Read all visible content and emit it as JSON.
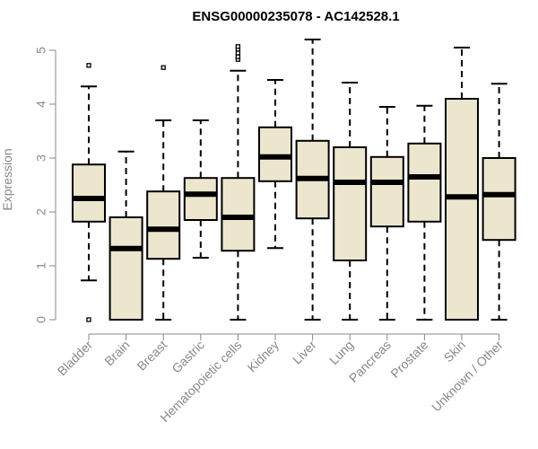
{
  "chart_data": {
    "type": "boxplot",
    "title": "ENSG00000235078 - AC142528.1",
    "xlabel": "",
    "ylabel": "Expression",
    "ylim": [
      0,
      5
    ],
    "yticks": [
      "0",
      "1",
      "2",
      "3",
      "4",
      "5"
    ],
    "categories": [
      "Bladder",
      "Brain",
      "Breast",
      "Gastric",
      "Hematopoietic cells",
      "Kidney",
      "Liver",
      "Lung",
      "Pancreas",
      "Prostate",
      "Skin",
      "Unknown / Other"
    ],
    "boxes": [
      {
        "whisker_low": 0.73,
        "q1": 1.82,
        "median": 2.25,
        "q3": 2.88,
        "whisker_high": 4.33,
        "outliers": [
          0.0,
          4.72
        ]
      },
      {
        "whisker_low": 0.0,
        "q1": 0.0,
        "median": 1.32,
        "q3": 1.9,
        "whisker_high": 3.12,
        "outliers": []
      },
      {
        "whisker_low": 0.0,
        "q1": 1.13,
        "median": 1.68,
        "q3": 2.38,
        "whisker_high": 3.7,
        "outliers": [
          4.68
        ]
      },
      {
        "whisker_low": 1.15,
        "q1": 1.85,
        "median": 2.33,
        "q3": 2.63,
        "whisker_high": 3.7,
        "outliers": []
      },
      {
        "whisker_low": 0.0,
        "q1": 1.28,
        "median": 1.9,
        "q3": 2.63,
        "whisker_high": 4.62,
        "outliers": [
          4.83,
          4.88,
          4.95,
          5.02,
          5.07
        ]
      },
      {
        "whisker_low": 1.33,
        "q1": 2.57,
        "median": 3.02,
        "q3": 3.57,
        "whisker_high": 4.45,
        "outliers": []
      },
      {
        "whisker_low": 0.0,
        "q1": 1.88,
        "median": 2.62,
        "q3": 3.32,
        "whisker_high": 5.2,
        "outliers": []
      },
      {
        "whisker_low": 0.0,
        "q1": 1.1,
        "median": 2.55,
        "q3": 3.2,
        "whisker_high": 4.4,
        "outliers": []
      },
      {
        "whisker_low": 0.0,
        "q1": 1.73,
        "median": 2.55,
        "q3": 3.02,
        "whisker_high": 3.95,
        "outliers": []
      },
      {
        "whisker_low": 0.0,
        "q1": 1.82,
        "median": 2.65,
        "q3": 3.27,
        "whisker_high": 3.97,
        "outliers": []
      },
      {
        "whisker_low": 0.0,
        "q1": 0.0,
        "median": 2.28,
        "q3": 4.1,
        "whisker_high": 5.05,
        "outliers": []
      },
      {
        "whisker_low": 0.0,
        "q1": 1.48,
        "median": 2.32,
        "q3": 3.0,
        "whisker_high": 4.38,
        "outliers": []
      }
    ],
    "box_fill": "#EDE6CF",
    "line_color": "#000000",
    "axis_color": "#888888"
  }
}
